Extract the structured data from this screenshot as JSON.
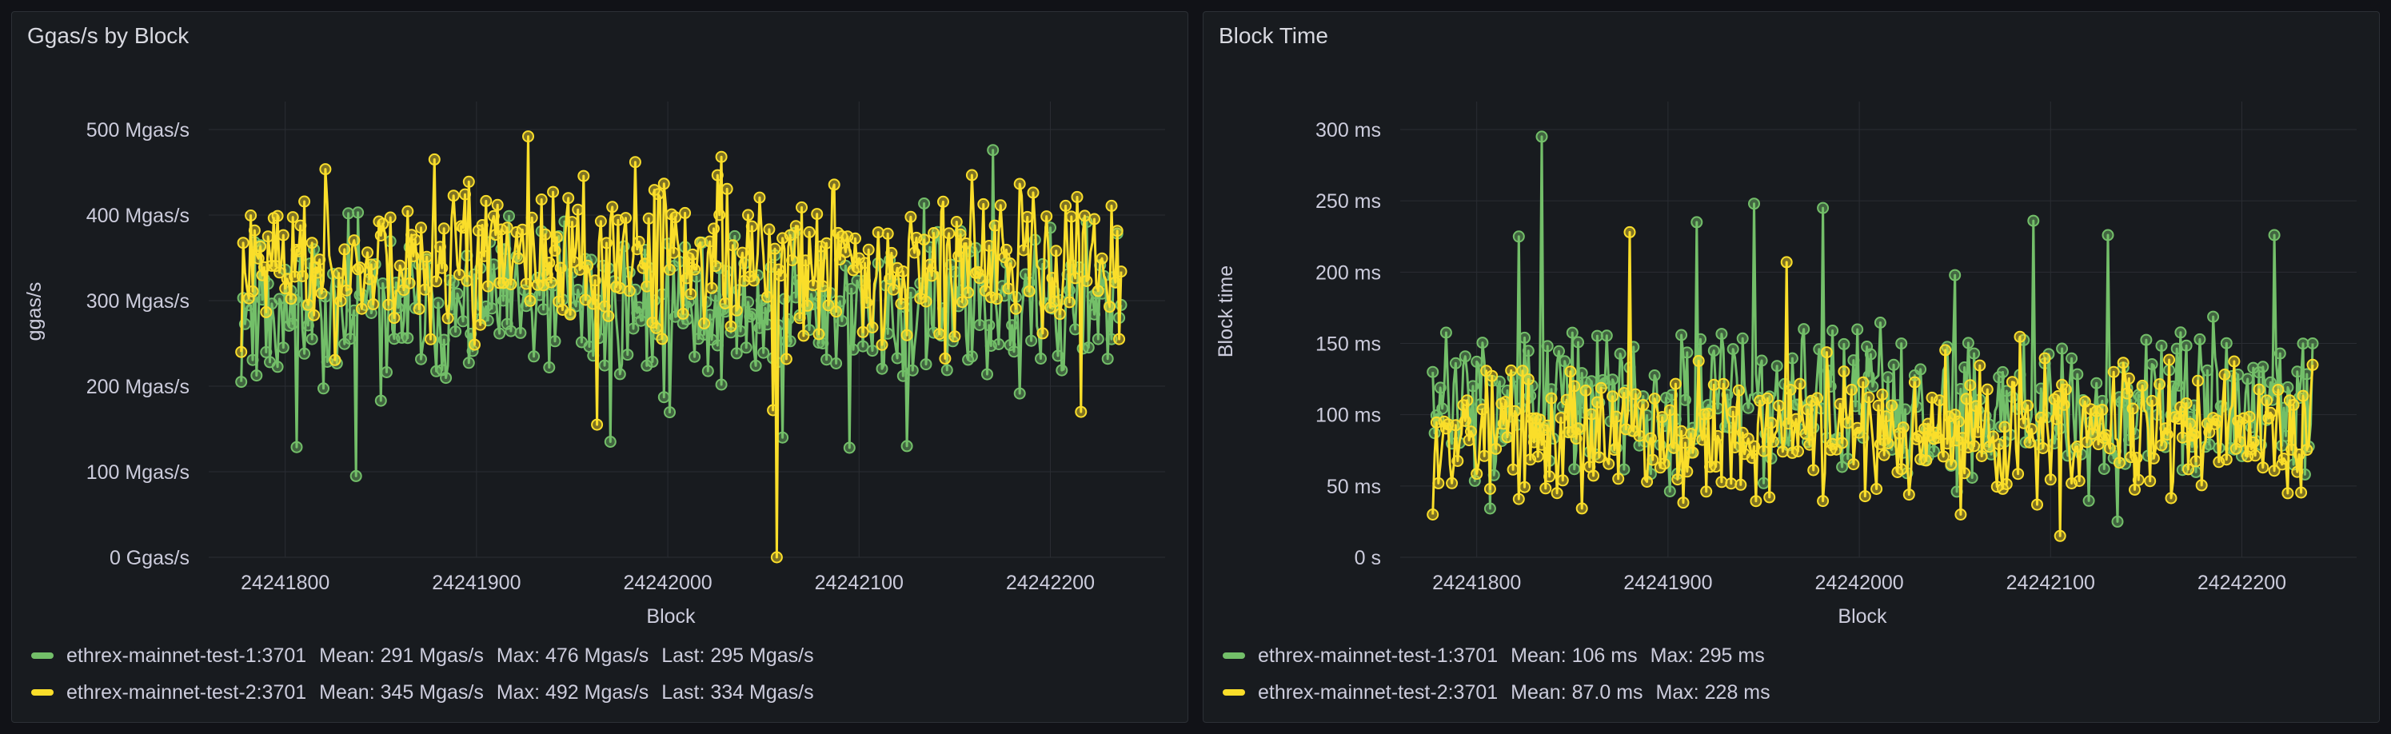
{
  "colors": {
    "series1": "#73bf69",
    "series2": "#fade2a",
    "grid": "#2a2d33",
    "text": "#ccccdc"
  },
  "chart_data": [
    {
      "type": "line",
      "title": "Ggas/s by Block",
      "xlabel": "Block",
      "ylabel": "ggas/s",
      "xlim": [
        24241760,
        24242260
      ],
      "ylim": [
        0,
        500
      ],
      "xticks": [
        24241800,
        24241900,
        24242000,
        24242100,
        24242200
      ],
      "xtick_labels": [
        "24241800",
        "24241900",
        "24242000",
        "24242100",
        "24242200"
      ],
      "yticks": [
        0,
        100,
        200,
        300,
        400,
        500
      ],
      "ytick_labels": [
        "0 Ggas/s",
        "100 Mgas/s",
        "200 Mgas/s",
        "300 Mgas/s",
        "400 Mgas/s",
        "500 Mgas/s"
      ],
      "x_range": [
        24241777,
        24242237
      ],
      "series": [
        {
          "name": "ethrex-mainnet-test-1:3701",
          "stats": [
            "Mean: 291 Mgas/s",
            "Max: 476 Mgas/s",
            "Last: 295 Mgas/s"
          ],
          "mean": 291,
          "spread": 62,
          "min_val": 95,
          "max_val": 476,
          "first": 205,
          "last": 295,
          "seed": 11,
          "spikes": [
            [
              24241837,
              95
            ],
            [
              24242170,
              476
            ],
            [
              24242095,
              128
            ],
            [
              24241970,
              135
            ],
            [
              24242060,
              140
            ],
            [
              24242125,
              130
            ]
          ]
        },
        {
          "name": "ethrex-mainnet-test-2:3701",
          "stats": [
            "Mean: 345 Mgas/s",
            "Max: 492 Mgas/s",
            "Last: 334 Mgas/s"
          ],
          "mean": 345,
          "spread": 60,
          "min_val": 0,
          "max_val": 492,
          "first": 240,
          "last": 334,
          "seed": 23,
          "spikes": [
            [
              24242057,
              0
            ],
            [
              24242055,
              172
            ],
            [
              24241927,
              492
            ],
            [
              24241878,
              465
            ],
            [
              24242028,
              468
            ],
            [
              24241963,
              155
            ],
            [
              24242216,
              170
            ]
          ]
        }
      ]
    },
    {
      "type": "line",
      "title": "Block Time",
      "xlabel": "Block",
      "ylabel": "Block time",
      "xlim": [
        24241760,
        24242260
      ],
      "ylim": [
        0,
        300
      ],
      "xticks": [
        24241800,
        24241900,
        24242000,
        24242100,
        24242200
      ],
      "xtick_labels": [
        "24241800",
        "24241900",
        "24242000",
        "24242100",
        "24242200"
      ],
      "yticks": [
        0,
        50,
        100,
        150,
        200,
        250,
        300
      ],
      "ytick_labels": [
        "0 s",
        "50 ms",
        "100 ms",
        "150 ms",
        "200 ms",
        "250 ms",
        "300 ms"
      ],
      "x_range": [
        24241777,
        24242237
      ],
      "series": [
        {
          "name": "ethrex-mainnet-test-1:3701",
          "stats": [
            "Mean: 106 ms",
            "Max: 295 ms"
          ],
          "mean": 106,
          "spread": 38,
          "min_val": 10,
          "max_val": 295,
          "first": 130,
          "last": 150,
          "seed": 37,
          "spikes": [
            [
              24241834,
              295
            ],
            [
              24241822,
              225
            ],
            [
              24241915,
              235
            ],
            [
              24241945,
              248
            ],
            [
              24241981,
              245
            ],
            [
              24242091,
              236
            ],
            [
              24242130,
              226
            ],
            [
              24242217,
              226
            ]
          ]
        },
        {
          "name": "ethrex-mainnet-test-2:3701",
          "stats": [
            "Mean: 87.0 ms",
            "Max: 228 ms"
          ],
          "mean": 87,
          "spread": 32,
          "min_val": 10,
          "max_val": 228,
          "first": 30,
          "last": 135,
          "seed": 53,
          "spikes": [
            [
              24241880,
              228
            ],
            [
              24241962,
              207
            ],
            [
              24242053,
              30
            ],
            [
              24242105,
              15
            ]
          ]
        }
      ]
    }
  ]
}
